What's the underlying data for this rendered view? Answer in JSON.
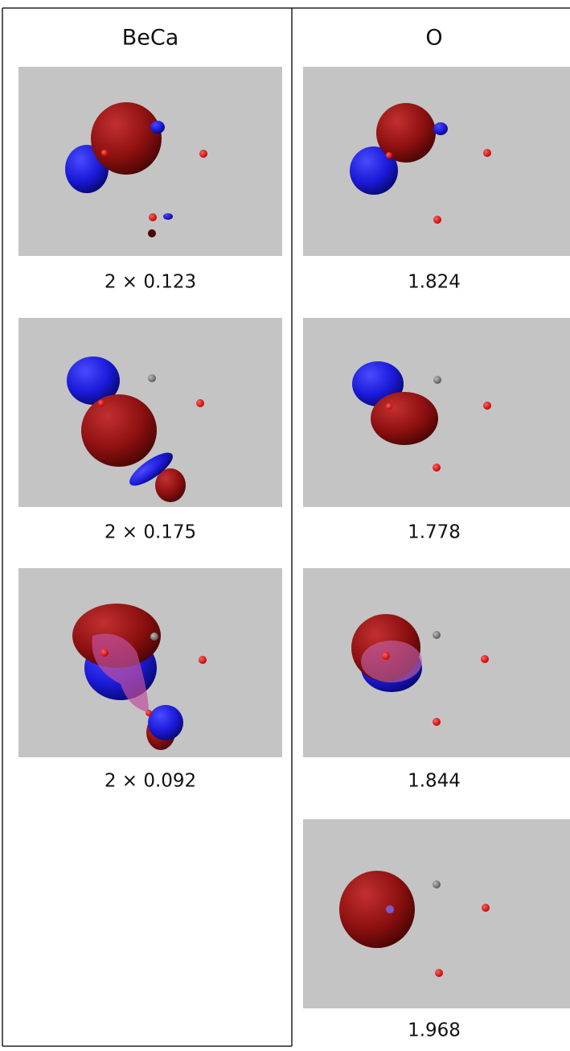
{
  "table": {
    "headers": [
      "BeCa",
      "O"
    ],
    "columns": [
      [
        "2 × 0.123",
        "2 × 0.175",
        "2 × 0.092"
      ],
      [
        "1.824",
        "1.778",
        "1.844",
        "1.968"
      ]
    ]
  }
}
